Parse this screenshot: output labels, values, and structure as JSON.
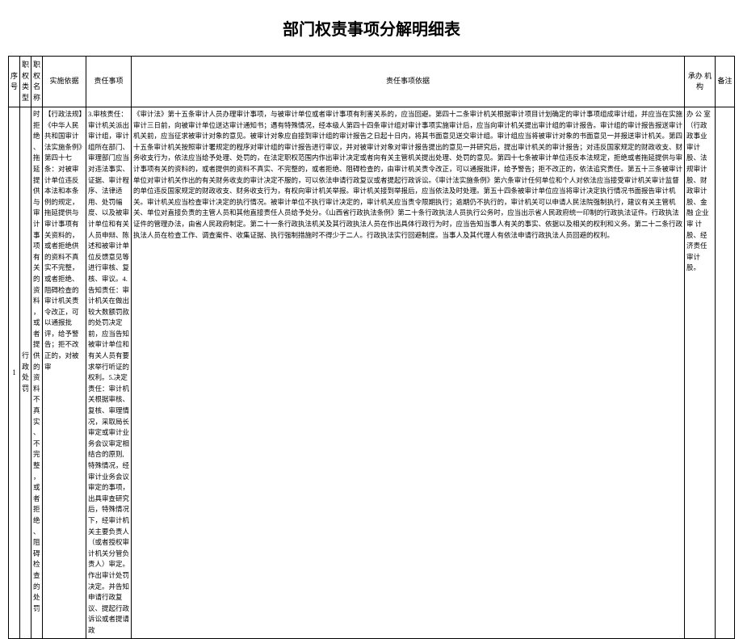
{
  "title": "部门权责事项分解明细表",
  "headers": {
    "seq": "序号",
    "type": "职权类型",
    "name": "职权名称",
    "basis": "实施依据",
    "resp": "责任事项",
    "resp_basis": "责任事项依据",
    "org": "承办 机构",
    "remark": "备注"
  },
  "row": {
    "seq": "1",
    "type": "行政处罚",
    "name": "时拒绝、拖延提供与审计事项有关的资料，或者提供的资料不真实、不完整，或者拒绝、阻碍检查的处罚",
    "basis": "【行政法规】《中华人民共和国审计法实施条例》第四十七条：对被审计单位违反本法和本条例的规定，拖延提供与审计事项有关资料的，或者拒绝供的资料不真实不完整，或者拒绝、阻碍检查的审计机关责令改正，可以通报批评，给予警告；拒不改正的，对被审",
    "resp": "3.审核责任：审计机关派出审计组，审计组所在部门、审理部门应当对违法事实、证据、审计程序、法律适用、处罚幅度、以及被审计单位和有关人员申辩、陈述和被审计单位反馈意见等进行审核、复核、审议。4.告知责任：审计机关在做出较大数额罚款的处罚决定前，应当告知被审计单位和有关人员有要求举行听证的权利。5.决定责任：审计机关根据审核、复核、审理情况，采取局长审定或审计业务会议审定相结合的原则,特殊情况，经审计业务会议审定的事项，出具审查研究后，特殊情况下，经审计机关主要负责人（或者授权审计机关分管负责人）审定。作出审计处罚决定。并告知申请行政复议、提起行政诉讼或者提请政",
    "resp_basis": "《审计法》第十五条审计人员办理审计事项，与被审计单位或者审计事项有利害关系的，应当回避。第四十二条审计机关根据审计项目计划确定的审计事项组成审计组，并应当在实施审计三日前，向被审计单位送达审计通知书；遇有特殊情况，经本级人第四十四条审计组对审计事项实施审计后，应当向审计机关提出审计组的审计报告。审计组的审计报告报送审计机关前，应当征求被审计对象的意见。被审计对象应自接到审计组的审计报告之日起十日内，将其书面意见送交审计组。审计组应当将被审计对象的书面意见一并报送审计机关。第四十五条审计机关按照审计署规定的程序对审计组的审计报告进行审议，并对被审计对象对审计报告提出的意见一并研究后，提出审计机关的审计报告；对违反国家规定的财政收支、财务收支行为，依法应当给予处理、处罚的，在法定职权范围内作出审计决定或者向有关主管机关提出处理、处罚的意见。第四十七条被审计单位违反本法规定，拒绝或者拖延提供与审计事项有关的资料的，或者提供的资料不真实、不完整的，或者拒绝、阻碍检查的，由审计机关责令改正，可以通报批评，给予警告；拒不改正的，依法追究责任。第五十三条被审计单位对审计机关作出的有关财务收支的审计决定不服的，可以依法申请行政复议或者提起行政诉讼。《审计法实施条例》第六条审计任何单位和个人对依法应当接受审计机关审计监督的单位违反国家规定的财政收支、财务收支行为，有权向审计机关举报。审计机关接到举报后，应当依法及时处理。第五十四条被审计单位应当将审计决定执行情况书面报告审计机关。审计机关应当检查审计决定的执行情况。被审计单位不执行审计决定的，审计机关应当责令限期执行；逾期仍不执行的，审计机关可以申请人民法院强制执行，建议有关主管机关、单位对直接负责的主管人员和其他直接责任人员给予处分。《山西省行政执法条例》第二十条行政执法人员执行公务时，应当出示省人民政府统一印制的行政执法证件。行政执法证件的管理办法，由省人民政府制定。第二十一条行政执法机关及其行政执法人员在作出具体行政行为时，应当告知当事人有关的事实、依据以及相关的权利和义务。第二十二条行政执法人员在检查工作、调查案件、收集证据、执行强制措施时不得少于二人。行政执法实行回避制度。当事人及其代理人有依法申请行政执法人员回避的权利。",
    "org": "办 公 室（行政政事业审计股、法规审计股、财政审计股、金 融 企业 审 计股、经济责任审计股。"
  }
}
